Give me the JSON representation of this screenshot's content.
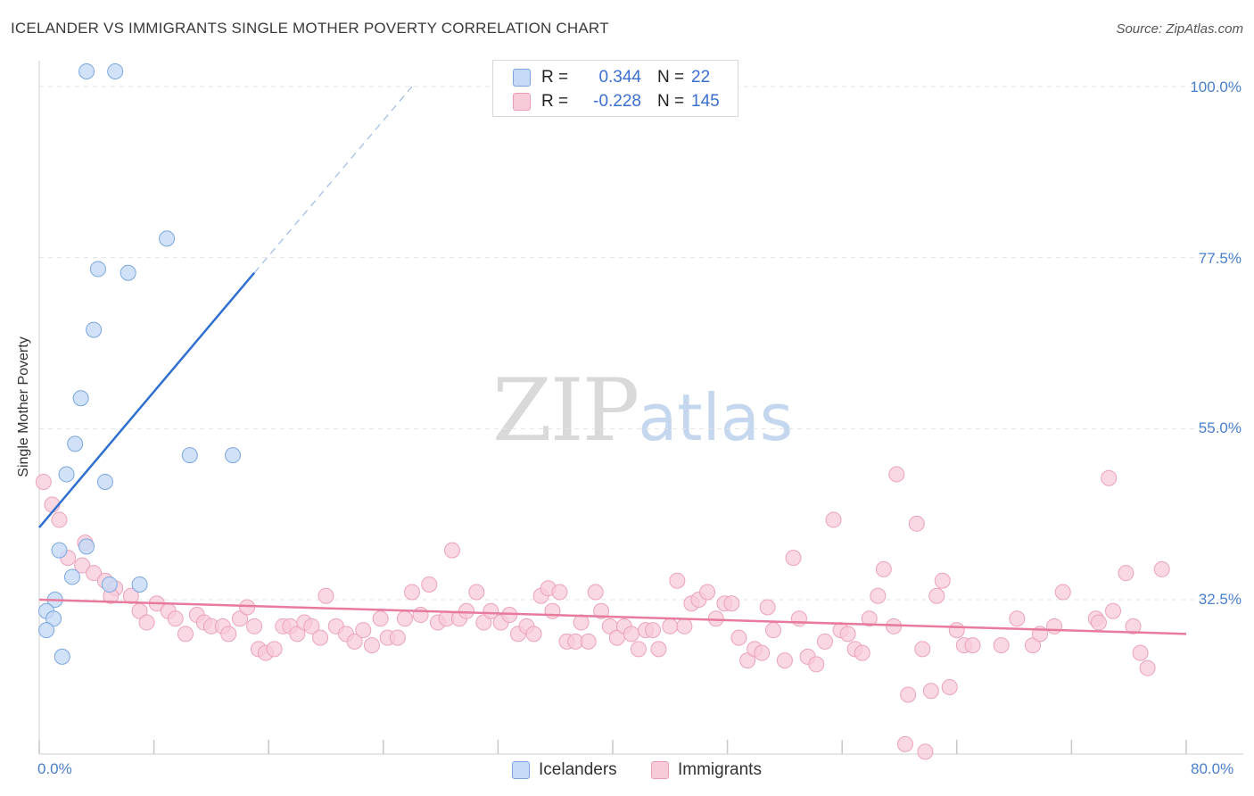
{
  "title": "ICELANDER VS IMMIGRANTS SINGLE MOTHER POVERTY CORRELATION CHART",
  "source": "Source: ZipAtlas.com",
  "watermark": {
    "zip": "ZIP",
    "atlas": "atlas"
  },
  "legend": {
    "rows": [
      {
        "r_label": "R =",
        "r_value": "0.344",
        "n_label": "N =",
        "n_value": "22",
        "color": "#a9c7f0"
      },
      {
        "r_label": "R =",
        "r_value": "-0.228",
        "n_label": "N =",
        "n_value": "145",
        "color": "#f5b8cb"
      }
    ]
  },
  "chart_data": {
    "type": "scatter",
    "title": "ICELANDER VS IMMIGRANTS SINGLE MOTHER POVERTY CORRELATION CHART",
    "xlabel": "",
    "ylabel": "Single Mother Poverty",
    "xlim": [
      0,
      80
    ],
    "ylim": [
      12,
      102
    ],
    "x_tick_labels": [
      "0.0%",
      "80.0%"
    ],
    "y_ticks": [
      32.5,
      55.0,
      77.5,
      100.0
    ],
    "y_tick_labels": [
      "32.5%",
      "55.0%",
      "77.5%",
      "100.0%"
    ],
    "grid": "horizontal dashed",
    "legend_position": "top-center",
    "colors": {
      "icelanders": "#5b8fd6",
      "immigrants": "#e87a9c",
      "icelanders_fill": "#c6daf5",
      "immigrants_fill": "#f8cbd9"
    },
    "series": [
      {
        "name": "Icelanders",
        "trend": {
          "x": [
            0,
            15
          ],
          "y": [
            42.0,
            75.5
          ],
          "extended_to": [
            26,
            100
          ]
        },
        "points": [
          [
            3.3,
            102
          ],
          [
            5.3,
            102
          ],
          [
            8.9,
            80
          ],
          [
            4.1,
            76
          ],
          [
            6.2,
            75.5
          ],
          [
            3.8,
            68
          ],
          [
            2.9,
            59
          ],
          [
            2.5,
            53
          ],
          [
            10.5,
            51.5
          ],
          [
            13.5,
            51.5
          ],
          [
            1.9,
            49
          ],
          [
            4.6,
            48
          ],
          [
            1.4,
            39
          ],
          [
            3.3,
            39.5
          ],
          [
            2.3,
            35.5
          ],
          [
            4.9,
            34.5
          ],
          [
            7.0,
            34.5
          ],
          [
            1.1,
            32.5
          ],
          [
            0.5,
            31
          ],
          [
            1.0,
            30
          ],
          [
            0.5,
            28.5
          ],
          [
            1.6,
            25
          ]
        ]
      },
      {
        "name": "Immigrants",
        "trend": {
          "x": [
            0,
            80
          ],
          "y": [
            32.5,
            28.0
          ]
        },
        "points": [
          [
            0.3,
            48
          ],
          [
            0.9,
            45
          ],
          [
            1.4,
            43
          ],
          [
            3.2,
            40
          ],
          [
            2.0,
            38
          ],
          [
            3.0,
            37
          ],
          [
            3.8,
            36
          ],
          [
            4.6,
            35
          ],
          [
            5.3,
            34
          ],
          [
            5.0,
            33
          ],
          [
            6.4,
            33
          ],
          [
            7.0,
            31
          ],
          [
            8.2,
            32
          ],
          [
            9.0,
            31
          ],
          [
            7.5,
            29.5
          ],
          [
            9.5,
            30
          ],
          [
            10.2,
            28
          ],
          [
            11.0,
            30.5
          ],
          [
            11.5,
            29.5
          ],
          [
            12.0,
            29
          ],
          [
            12.8,
            29
          ],
          [
            13.2,
            28
          ],
          [
            14.0,
            30
          ],
          [
            14.5,
            31.5
          ],
          [
            15.0,
            29
          ],
          [
            15.3,
            26
          ],
          [
            15.8,
            25.5
          ],
          [
            16.4,
            26
          ],
          [
            17.0,
            29
          ],
          [
            17.5,
            29
          ],
          [
            18.0,
            28
          ],
          [
            18.5,
            29.5
          ],
          [
            19.0,
            29
          ],
          [
            19.6,
            27.5
          ],
          [
            20.0,
            33
          ],
          [
            20.7,
            29
          ],
          [
            21.4,
            28
          ],
          [
            22.0,
            27
          ],
          [
            22.6,
            28.5
          ],
          [
            23.2,
            26.5
          ],
          [
            23.8,
            30
          ],
          [
            24.3,
            27.5
          ],
          [
            25.0,
            27.5
          ],
          [
            25.5,
            30
          ],
          [
            26.0,
            33.5
          ],
          [
            26.6,
            30.5
          ],
          [
            27.2,
            34.5
          ],
          [
            27.8,
            29.5
          ],
          [
            28.4,
            30
          ],
          [
            28.8,
            39
          ],
          [
            29.3,
            30
          ],
          [
            29.8,
            31
          ],
          [
            30.5,
            33.5
          ],
          [
            31.0,
            29.5
          ],
          [
            31.5,
            31
          ],
          [
            32.2,
            29.5
          ],
          [
            32.8,
            30.5
          ],
          [
            33.4,
            28
          ],
          [
            34.0,
            29
          ],
          [
            34.5,
            28
          ],
          [
            35.0,
            33
          ],
          [
            35.5,
            34
          ],
          [
            35.8,
            31
          ],
          [
            36.3,
            33.5
          ],
          [
            36.8,
            27
          ],
          [
            37.4,
            27
          ],
          [
            37.8,
            29.5
          ],
          [
            38.3,
            27
          ],
          [
            38.8,
            33.5
          ],
          [
            39.2,
            31
          ],
          [
            39.8,
            29
          ],
          [
            40.3,
            27.5
          ],
          [
            40.8,
            29
          ],
          [
            41.3,
            28
          ],
          [
            41.8,
            26
          ],
          [
            42.3,
            28.5
          ],
          [
            42.8,
            28.5
          ],
          [
            43.2,
            26
          ],
          [
            44.0,
            29
          ],
          [
            44.5,
            35
          ],
          [
            45.0,
            29
          ],
          [
            45.5,
            32
          ],
          [
            46.0,
            32.5
          ],
          [
            46.6,
            33.5
          ],
          [
            47.2,
            30
          ],
          [
            47.8,
            32
          ],
          [
            48.3,
            32
          ],
          [
            48.8,
            27.5
          ],
          [
            49.4,
            24.5
          ],
          [
            49.9,
            26
          ],
          [
            50.4,
            25.5
          ],
          [
            50.8,
            31.5
          ],
          [
            51.2,
            28.5
          ],
          [
            52.0,
            24.5
          ],
          [
            52.6,
            38
          ],
          [
            53.0,
            30
          ],
          [
            53.6,
            25
          ],
          [
            54.2,
            24
          ],
          [
            54.8,
            27
          ],
          [
            55.4,
            43
          ],
          [
            55.9,
            28.5
          ],
          [
            56.4,
            28
          ],
          [
            56.9,
            26
          ],
          [
            57.4,
            25.5
          ],
          [
            57.9,
            30
          ],
          [
            58.5,
            33
          ],
          [
            58.9,
            36.5
          ],
          [
            59.6,
            29
          ],
          [
            59.8,
            49
          ],
          [
            60.6,
            20
          ],
          [
            61.2,
            42.5
          ],
          [
            61.6,
            26
          ],
          [
            62.2,
            20.5
          ],
          [
            62.6,
            33
          ],
          [
            63.0,
            35
          ],
          [
            63.5,
            21
          ],
          [
            64.0,
            28.5
          ],
          [
            64.5,
            26.5
          ],
          [
            65.1,
            26.5
          ],
          [
            67.1,
            26.5
          ],
          [
            68.2,
            30
          ],
          [
            69.3,
            26.5
          ],
          [
            69.8,
            28
          ],
          [
            70.8,
            29
          ],
          [
            71.4,
            33.5
          ],
          [
            73.7,
            30
          ],
          [
            73.9,
            29.5
          ],
          [
            74.6,
            48.5
          ],
          [
            74.9,
            31
          ],
          [
            75.8,
            36
          ],
          [
            76.3,
            29
          ],
          [
            76.8,
            25.5
          ],
          [
            77.3,
            23.5
          ],
          [
            78.3,
            36.5
          ],
          [
            60.4,
            13.5
          ],
          [
            61.8,
            12.5
          ]
        ]
      }
    ]
  },
  "bottom_legend": [
    {
      "label": "Icelanders",
      "color": "#a9c7f0"
    },
    {
      "label": "Immigrants",
      "color": "#f5b8cb"
    }
  ]
}
